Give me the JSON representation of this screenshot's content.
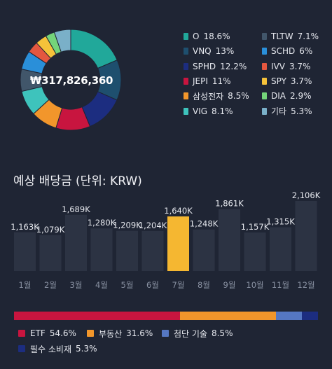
{
  "portfolio": {
    "total": "₩317,826,360",
    "holdings": [
      {
        "name": "O",
        "pct": "18.6%",
        "value": 18.6,
        "color": "#21a89a"
      },
      {
        "name": "VNQ",
        "pct": "13%",
        "value": 13,
        "color": "#1e4f6e"
      },
      {
        "name": "SPHD",
        "pct": "12.2%",
        "value": 12.2,
        "color": "#1c2d80"
      },
      {
        "name": "JEPI",
        "pct": "11%",
        "value": 11,
        "color": "#c8153f"
      },
      {
        "name": "삼성전자",
        "pct": "8.5%",
        "value": 8.5,
        "color": "#f2962b"
      },
      {
        "name": "VIG",
        "pct": "8.1%",
        "value": 8.1,
        "color": "#3ec3bc"
      },
      {
        "name": "TLTW",
        "pct": "7.1%",
        "value": 7.1,
        "color": "#41566a"
      },
      {
        "name": "SCHD",
        "pct": "6%",
        "value": 6,
        "color": "#2a8fd9"
      },
      {
        "name": "IVV",
        "pct": "3.7%",
        "value": 3.7,
        "color": "#e4573f"
      },
      {
        "name": "SPY",
        "pct": "3.7%",
        "value": 3.7,
        "color": "#f5c23a"
      },
      {
        "name": "DIA",
        "pct": "2.9%",
        "value": 2.9,
        "color": "#74d47a"
      },
      {
        "name": "기타",
        "pct": "5.3%",
        "value": 5.3,
        "color": "#7ab0c8"
      }
    ]
  },
  "dividends": {
    "title": "예상 배당금 (단위: KRW)",
    "highlight_color": "#f5b731",
    "bar_color": "#2c3343",
    "months": [
      {
        "label": "1월",
        "value": 1163,
        "text": "1,163K"
      },
      {
        "label": "2월",
        "value": 1079,
        "text": "1,079K"
      },
      {
        "label": "3월",
        "value": 1689,
        "text": "1,689K"
      },
      {
        "label": "4월",
        "value": 1280,
        "text": "1,280K"
      },
      {
        "label": "5월",
        "value": 1209,
        "text": "1,209K"
      },
      {
        "label": "6월",
        "value": 1204,
        "text": "1,204K"
      },
      {
        "label": "7월",
        "value": 1640,
        "text": "1,640K",
        "highlight": true
      },
      {
        "label": "8월",
        "value": 1248,
        "text": "1,248K"
      },
      {
        "label": "9월",
        "value": 1861,
        "text": "1,861K"
      },
      {
        "label": "10월",
        "value": 1157,
        "text": "1,157K"
      },
      {
        "label": "11월",
        "value": 1315,
        "text": "1,315K"
      },
      {
        "label": "12월",
        "value": 2106,
        "text": "2,106K"
      }
    ]
  },
  "breakdown": [
    {
      "name": "ETF",
      "pct": "54.6%",
      "value": 54.6,
      "color": "#c8153f"
    },
    {
      "name": "부동산",
      "pct": "31.6%",
      "value": 31.6,
      "color": "#f2962b"
    },
    {
      "name": "첨단 기술",
      "pct": "8.5%",
      "value": 8.5,
      "color": "#5577c2"
    },
    {
      "name": "필수 소비재",
      "pct": "5.3%",
      "value": 5.3,
      "color": "#1c2d80"
    }
  ],
  "chart_data": [
    {
      "type": "pie",
      "categories": [
        "O",
        "VNQ",
        "SPHD",
        "JEPI",
        "삼성전자",
        "VIG",
        "TLTW",
        "SCHD",
        "IVV",
        "SPY",
        "DIA",
        "기타"
      ],
      "values": [
        18.6,
        13,
        12.2,
        11,
        8.5,
        8.1,
        7.1,
        6,
        3.7,
        3.7,
        2.9,
        5.3
      ]
    },
    {
      "type": "bar",
      "title": "예상 배당금 (단위: KRW)",
      "categories": [
        "1월",
        "2월",
        "3월",
        "4월",
        "5월",
        "6월",
        "7월",
        "8월",
        "9월",
        "10월",
        "11월",
        "12월"
      ],
      "values": [
        1163,
        1079,
        1689,
        1280,
        1209,
        1204,
        1640,
        1248,
        1861,
        1157,
        1315,
        2106
      ],
      "ylim": [
        0,
        2106
      ]
    },
    {
      "type": "bar",
      "categories": [
        "ETF",
        "부동산",
        "첨단 기술",
        "필수 소비재"
      ],
      "values": [
        54.6,
        31.6,
        8.5,
        5.3
      ]
    }
  ]
}
